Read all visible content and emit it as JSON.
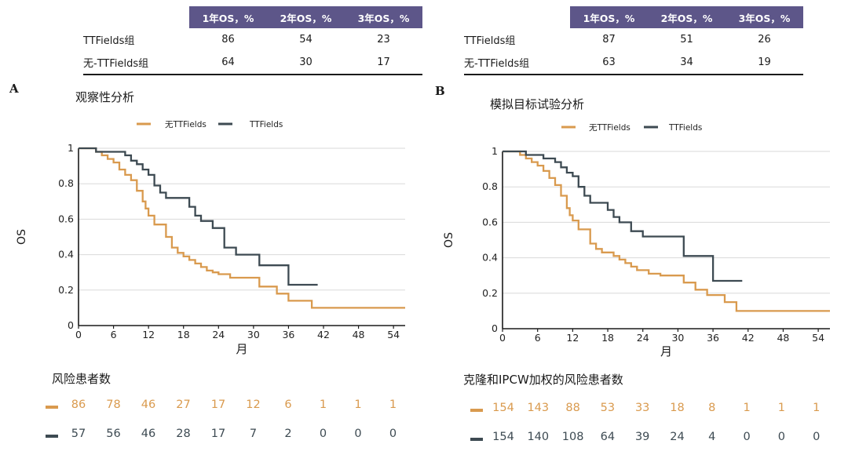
{
  "colors": {
    "no_ttfields": "#d99a4e",
    "ttfields": "#3d4a52",
    "table_header": "#5d5689",
    "grid": "#d9d9d9"
  },
  "panels": [
    {
      "letter": "A",
      "title": "观察性分析",
      "table": {
        "headers": [
          "1年OS，%",
          "2年OS，%",
          "3年OS，%"
        ],
        "rows": [
          {
            "label": "TTFields组",
            "values": [
              "86",
              "54",
              "23"
            ]
          },
          {
            "label": "无-TTFields组",
            "values": [
              "64",
              "30",
              "17"
            ]
          }
        ]
      },
      "risk_title": "风险患者数",
      "risk": {
        "no_ttfields": [
          "86",
          "78",
          "46",
          "27",
          "17",
          "12",
          "6",
          "1",
          "1",
          "1"
        ],
        "ttfields": [
          "57",
          "56",
          "46",
          "28",
          "17",
          "7",
          "2",
          "0",
          "0",
          "0"
        ]
      },
      "chart_data": {
        "type": "line",
        "title": "观察性分析",
        "xlabel": "月",
        "ylabel": "OS",
        "xlim": [
          0,
          56
        ],
        "ylim": [
          0,
          1
        ],
        "x_ticks": [
          0,
          6,
          12,
          18,
          24,
          30,
          36,
          42,
          48,
          54
        ],
        "x_tick_labels": [
          "0",
          "6",
          "12",
          "18",
          "24",
          "30",
          "36",
          "42",
          "48",
          "54"
        ],
        "y_ticks": [
          0,
          0.2,
          0.4,
          0.6,
          0.8,
          1
        ],
        "y_tick_labels": [
          "0",
          "0.2",
          "0.4",
          "0.6",
          "0.8",
          "1"
        ],
        "grid": true,
        "legend_position": "top",
        "series": [
          {
            "name": "无TTFields",
            "color": "#d99a4e",
            "steps": [
              [
                0,
                1
              ],
              [
                3,
                0.98
              ],
              [
                4,
                0.96
              ],
              [
                5,
                0.94
              ],
              [
                6,
                0.92
              ],
              [
                7,
                0.88
              ],
              [
                8,
                0.85
              ],
              [
                9,
                0.82
              ],
              [
                10,
                0.76
              ],
              [
                11,
                0.7
              ],
              [
                11.5,
                0.66
              ],
              [
                12,
                0.62
              ],
              [
                13,
                0.57
              ],
              [
                15,
                0.5
              ],
              [
                16,
                0.44
              ],
              [
                17,
                0.41
              ],
              [
                18,
                0.39
              ],
              [
                19,
                0.37
              ],
              [
                20,
                0.35
              ],
              [
                21,
                0.33
              ],
              [
                22,
                0.31
              ],
              [
                23,
                0.3
              ],
              [
                24,
                0.29
              ],
              [
                26,
                0.27
              ],
              [
                31,
                0.22
              ],
              [
                34,
                0.18
              ],
              [
                36,
                0.14
              ],
              [
                40,
                0.1
              ],
              [
                56,
                0.1
              ]
            ]
          },
          {
            "name": "TTFields",
            "color": "#3d4a52",
            "steps": [
              [
                0,
                1
              ],
              [
                3,
                0.98
              ],
              [
                8,
                0.96
              ],
              [
                9,
                0.93
              ],
              [
                10,
                0.91
              ],
              [
                11,
                0.88
              ],
              [
                12,
                0.85
              ],
              [
                13,
                0.79
              ],
              [
                14,
                0.75
              ],
              [
                15,
                0.72
              ],
              [
                19,
                0.67
              ],
              [
                20,
                0.62
              ],
              [
                21,
                0.59
              ],
              [
                23,
                0.55
              ],
              [
                25,
                0.44
              ],
              [
                27,
                0.4
              ],
              [
                31,
                0.34
              ],
              [
                36,
                0.23
              ],
              [
                41,
                0.23
              ]
            ]
          }
        ]
      }
    },
    {
      "letter": "B",
      "title": "模拟目标试验分析",
      "table": {
        "headers": [
          "1年OS，%",
          "2年OS，%",
          "3年OS，%"
        ],
        "rows": [
          {
            "label": "TTFields组",
            "values": [
              "87",
              "51",
              "26"
            ]
          },
          {
            "label": "无-TTFields组",
            "values": [
              "63",
              "34",
              "19"
            ]
          }
        ]
      },
      "risk_title": "克隆和IPCW加权的风险患者数",
      "risk": {
        "no_ttfields": [
          "154",
          "143",
          "88",
          "53",
          "33",
          "18",
          "8",
          "1",
          "1",
          "1"
        ],
        "ttfields": [
          "154",
          "140",
          "108",
          "64",
          "39",
          "24",
          "4",
          "0",
          "0",
          "0"
        ]
      },
      "chart_data": {
        "type": "line",
        "title": "模拟目标试验分析",
        "xlabel": "月",
        "ylabel": "OS",
        "xlim": [
          0,
          56
        ],
        "ylim": [
          0,
          1
        ],
        "x_ticks": [
          0,
          6,
          12,
          18,
          24,
          30,
          36,
          42,
          48,
          54
        ],
        "x_tick_labels": [
          "0",
          "6",
          "12",
          "18",
          "24",
          "30",
          "36",
          "42",
          "48",
          "54"
        ],
        "y_ticks": [
          0,
          0.2,
          0.4,
          0.6,
          0.8,
          1
        ],
        "y_tick_labels": [
          "0",
          "0.2",
          "0.4",
          "0.6",
          "0.8",
          "1"
        ],
        "grid": true,
        "legend_position": "top",
        "series": [
          {
            "name": "无TTFields",
            "color": "#d99a4e",
            "steps": [
              [
                0,
                1
              ],
              [
                3,
                0.98
              ],
              [
                4,
                0.96
              ],
              [
                5,
                0.94
              ],
              [
                6,
                0.92
              ],
              [
                7,
                0.89
              ],
              [
                8,
                0.85
              ],
              [
                9,
                0.81
              ],
              [
                10,
                0.75
              ],
              [
                11,
                0.68
              ],
              [
                11.5,
                0.64
              ],
              [
                12,
                0.61
              ],
              [
                13,
                0.56
              ],
              [
                15,
                0.48
              ],
              [
                16,
                0.45
              ],
              [
                17,
                0.43
              ],
              [
                19,
                0.41
              ],
              [
                20,
                0.39
              ],
              [
                21,
                0.37
              ],
              [
                22,
                0.35
              ],
              [
                23,
                0.33
              ],
              [
                25,
                0.31
              ],
              [
                27,
                0.3
              ],
              [
                31,
                0.26
              ],
              [
                33,
                0.22
              ],
              [
                35,
                0.19
              ],
              [
                38,
                0.15
              ],
              [
                40,
                0.1
              ],
              [
                56,
                0.1
              ]
            ]
          },
          {
            "name": "TTFields",
            "color": "#3d4a52",
            "steps": [
              [
                0,
                1
              ],
              [
                4,
                0.98
              ],
              [
                7,
                0.96
              ],
              [
                9,
                0.94
              ],
              [
                10,
                0.91
              ],
              [
                11,
                0.88
              ],
              [
                12,
                0.86
              ],
              [
                13,
                0.8
              ],
              [
                14,
                0.75
              ],
              [
                15,
                0.71
              ],
              [
                18,
                0.67
              ],
              [
                19,
                0.63
              ],
              [
                20,
                0.6
              ],
              [
                22,
                0.55
              ],
              [
                24,
                0.52
              ],
              [
                31,
                0.41
              ],
              [
                36,
                0.27
              ],
              [
                41,
                0.27
              ]
            ]
          }
        ]
      }
    }
  ]
}
